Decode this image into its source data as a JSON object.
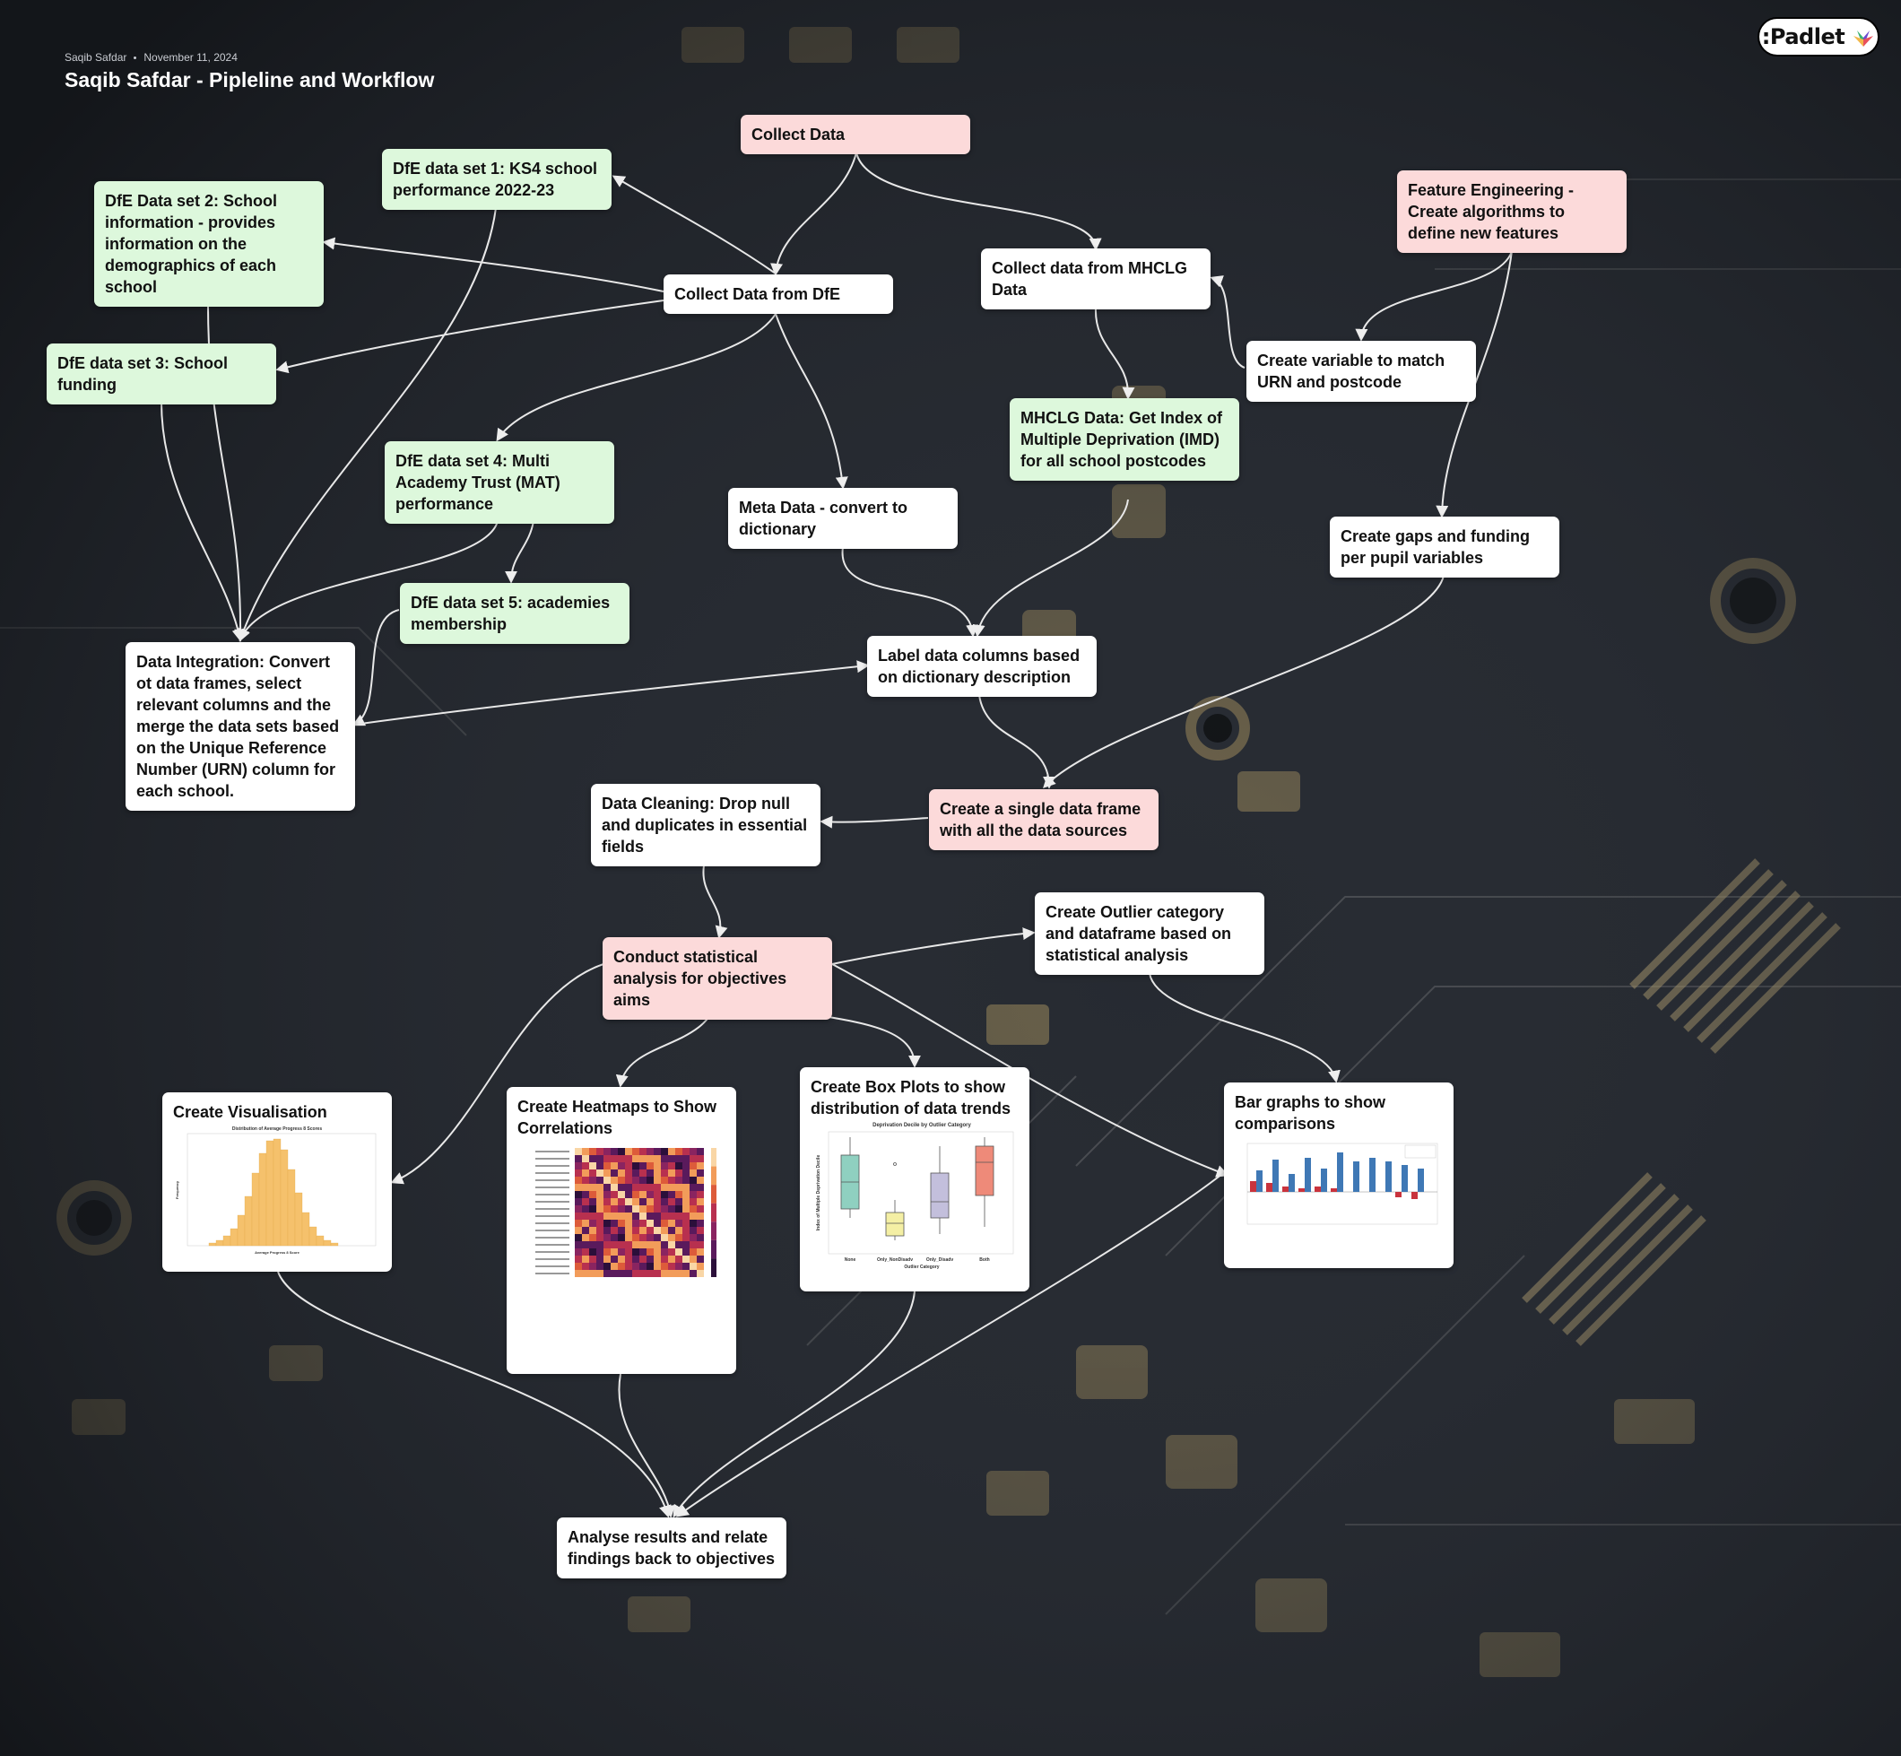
{
  "header": {
    "author": "Saqib Safdar",
    "date": "November 11, 2024",
    "title": "Saqib Safdar - Pipleline and Workflow",
    "brand": ":Padlet"
  },
  "colors": {
    "pink_card": "#fcdada",
    "green_card": "#ddf8dc",
    "white_card": "#ffffff",
    "connector": "#e8e8e8"
  },
  "cards": {
    "collect_data": "Collect Data",
    "ks4": "DfE data set 1: KS4 school performance 2022-23",
    "school_info": "DfE Data set 2: School information - provides information on the demographics of each school",
    "collect_dfe": "Collect Data from DfE",
    "mhclg": "Collect data from MHCLG Data",
    "feature_eng": "Feature Engineering - Create algorithms to define new features",
    "funding": "DfE data set 3: School funding",
    "urn_var": "Create variable to match URN and postcode",
    "imd": "MHCLG Data:  Get Index of Multiple Deprivation (IMD) for all school postcodes",
    "mat": "DfE data set 4: Multi Academy Trust (MAT) performance",
    "meta": "Meta Data  - convert to dictionary",
    "gaps": "Create gaps and funding per pupil variables",
    "academies": "DfE data set 5: academies membership",
    "integration": "Data Integration: Convert ot data frames, select relevant columns and the merge the data sets based on the Unique Reference Number (URN) column for each school.",
    "label": "Label data columns based on dictionary description",
    "cleaning": "Data Cleaning: Drop null and duplicates in essential fields",
    "single_frame": "Create a single data frame with all the data sources",
    "outlier": "Create Outlier category and dataframe based on statistical analysis",
    "stat": "Conduct statistical analysis for objectives aims",
    "viz": "Create Visualisation",
    "heatmap": "Create Heatmaps to Show Correlations",
    "boxplot": "Create Box Plots to show distribution of data trends",
    "bars": "Bar graphs to show comparisons",
    "analyse": "Analyse results and relate findings back to objectives"
  },
  "thumbnails": {
    "histogram_title": "Distribution of Average Progress 8 Scores",
    "histogram_xlabel": "Average Progress 8 Score",
    "histogram_ylabel": "Frequency",
    "boxplot_title": "Deprivation Decile by Outlier Category",
    "boxplot_xlabel": "Outlier Category",
    "boxplot_ylabel": "Index of Multiple Deprivation Decile",
    "boxplot_categories": [
      "None",
      "Only_NonDisadv",
      "Only_Disadv",
      "Both"
    ]
  }
}
